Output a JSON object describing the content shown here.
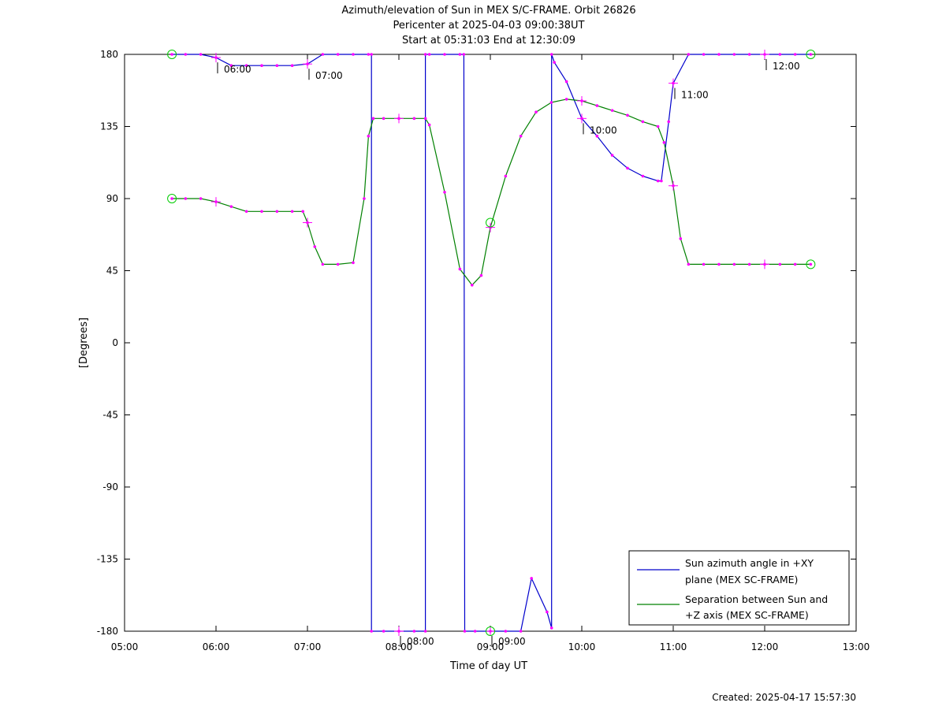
{
  "chart_data": {
    "type": "line",
    "title": "Azimuth/elevation of Sun in MEX S/C-FRAME.  Orbit 26826",
    "subtitle1": "Pericenter at 2025-04-03 09:00:38UT",
    "subtitle2": "Start at 05:31:03 End at 12:30:09",
    "xlabel": "Time of day UT",
    "ylabel": "[Degrees]",
    "footer": "Created: 2025-04-17 15:57:30",
    "xlim": [
      5.0,
      13.0
    ],
    "ylim": [
      -180,
      180
    ],
    "x_ticks": [
      "05:00",
      "06:00",
      "07:00",
      "08:00",
      "09:00",
      "10:00",
      "11:00",
      "12:00",
      "13:00"
    ],
    "y_ticks": [
      180,
      135,
      90,
      45,
      0,
      -45,
      -90,
      -135,
      -180
    ],
    "grid": false,
    "legend_position": "bottom-right",
    "series": [
      {
        "name": "Sun azimuth angle in +XY plane (MEX SC-FRAME)",
        "legend_line1": "Sun azimuth angle in +XY",
        "legend_line2": "plane (MEX SC-FRAME)",
        "color": "#0000cc",
        "points": [
          [
            5.518,
            180
          ],
          [
            5.667,
            180
          ],
          [
            5.833,
            180
          ],
          [
            6.0,
            178
          ],
          [
            6.167,
            173
          ],
          [
            6.333,
            173
          ],
          [
            6.5,
            173
          ],
          [
            6.667,
            173
          ],
          [
            6.833,
            173
          ],
          [
            7.0,
            174
          ],
          [
            7.167,
            180
          ],
          [
            7.333,
            180
          ],
          [
            7.5,
            180
          ],
          [
            7.667,
            180
          ],
          [
            7.7,
            180
          ],
          [
            7.7,
            -180
          ],
          [
            7.833,
            -180
          ],
          [
            8.0,
            -180
          ],
          [
            8.167,
            -180
          ],
          [
            8.29,
            -180
          ],
          [
            8.29,
            180
          ],
          [
            8.333,
            180
          ],
          [
            8.5,
            180
          ],
          [
            8.667,
            180
          ],
          [
            8.71,
            180
          ],
          [
            8.72,
            -180
          ],
          [
            8.833,
            -180
          ],
          [
            9.0,
            -180
          ],
          [
            9.167,
            -180
          ],
          [
            9.333,
            -180
          ],
          [
            9.45,
            -147
          ],
          [
            9.62,
            -168
          ],
          [
            9.67,
            -178
          ],
          [
            9.67,
            180
          ],
          [
            9.7,
            175
          ],
          [
            9.833,
            163
          ],
          [
            10.0,
            140
          ],
          [
            10.167,
            129
          ],
          [
            10.333,
            117
          ],
          [
            10.5,
            109
          ],
          [
            10.667,
            104
          ],
          [
            10.833,
            101
          ],
          [
            10.87,
            101
          ],
          [
            10.95,
            138
          ],
          [
            11.0,
            162
          ],
          [
            11.167,
            180
          ],
          [
            11.333,
            180
          ],
          [
            11.5,
            180
          ],
          [
            11.667,
            180
          ],
          [
            11.833,
            180
          ],
          [
            12.0,
            180
          ],
          [
            12.167,
            180
          ],
          [
            12.333,
            180
          ],
          [
            12.503,
            180
          ]
        ]
      },
      {
        "name": "Separation between Sun and +Z axis (MEX SC-FRAME)",
        "legend_line1": "Separation between Sun and",
        "legend_line2": "+Z axis (MEX SC-FRAME)",
        "color": "#008000",
        "points": [
          [
            5.518,
            90
          ],
          [
            5.667,
            90
          ],
          [
            5.833,
            90
          ],
          [
            6.0,
            88
          ],
          [
            6.167,
            85
          ],
          [
            6.333,
            82
          ],
          [
            6.5,
            82
          ],
          [
            6.667,
            82
          ],
          [
            6.833,
            82
          ],
          [
            6.95,
            82
          ],
          [
            7.0,
            75
          ],
          [
            7.08,
            60
          ],
          [
            7.167,
            49
          ],
          [
            7.333,
            49
          ],
          [
            7.5,
            50
          ],
          [
            7.62,
            90
          ],
          [
            7.667,
            129
          ],
          [
            7.72,
            140
          ],
          [
            7.833,
            140
          ],
          [
            8.0,
            140
          ],
          [
            8.167,
            140
          ],
          [
            8.29,
            140
          ],
          [
            8.333,
            136
          ],
          [
            8.5,
            94
          ],
          [
            8.667,
            46
          ],
          [
            8.8,
            36
          ],
          [
            8.9,
            42
          ],
          [
            9.0,
            72
          ],
          [
            9.167,
            104
          ],
          [
            9.333,
            129
          ],
          [
            9.5,
            144
          ],
          [
            9.667,
            150
          ],
          [
            9.833,
            152
          ],
          [
            10.0,
            151
          ],
          [
            10.167,
            148
          ],
          [
            10.333,
            145
          ],
          [
            10.5,
            142
          ],
          [
            10.667,
            138
          ],
          [
            10.833,
            135
          ],
          [
            10.9,
            125
          ],
          [
            11.0,
            98
          ],
          [
            11.08,
            65
          ],
          [
            11.167,
            49
          ],
          [
            11.333,
            49
          ],
          [
            11.5,
            49
          ],
          [
            11.667,
            49
          ],
          [
            11.833,
            49
          ],
          [
            12.0,
            49
          ],
          [
            12.167,
            49
          ],
          [
            12.333,
            49
          ],
          [
            12.503,
            49
          ]
        ]
      }
    ],
    "hour_markers": [
      {
        "label": "06:00",
        "x": 6.0,
        "az": 178,
        "sep": 88
      },
      {
        "label": "07:00",
        "x": 7.0,
        "az": 174,
        "sep": 75
      },
      {
        "label": "08:00",
        "x": 8.0,
        "az": -180,
        "sep": 140
      },
      {
        "label": "09:00",
        "x": 9.0,
        "az": -180,
        "sep": 72
      },
      {
        "label": "10:00",
        "x": 10.0,
        "az": 140,
        "sep": 151
      },
      {
        "label": "11:00",
        "x": 11.0,
        "az": 162,
        "sep": 98
      },
      {
        "label": "12:00",
        "x": 12.0,
        "az": 180,
        "sep": 49
      }
    ],
    "pericenter_markers": [
      {
        "x": 9.0,
        "az": -180,
        "sep": 75
      }
    ],
    "endpoint_markers": [
      {
        "x": 5.518,
        "az": 180,
        "sep": 90
      },
      {
        "x": 12.503,
        "az": 180,
        "sep": 49
      }
    ],
    "marker_color": "#ff00ff",
    "endpoint_color": "#00cc00"
  }
}
